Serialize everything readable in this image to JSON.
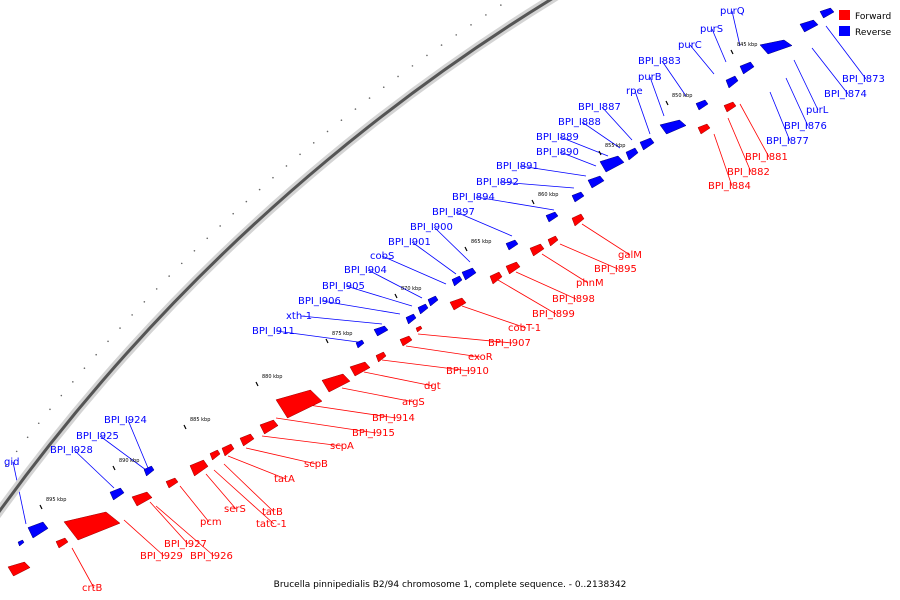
{
  "caption": "Brucella pinnipedialis B2/94 chromosome 1, complete sequence. - 0..2138342",
  "legend": {
    "forward": {
      "label": "Forward",
      "color": "#ff0000"
    },
    "reverse": {
      "label": "Reverse",
      "color": "#0000ff"
    }
  },
  "tick_labels": [
    "845 kbp",
    "850 kbp",
    "855 kbp",
    "860 kbp",
    "865 kbp",
    "870 kbp",
    "875 kbp",
    "880 kbp",
    "885 kbp",
    "890 kbp",
    "895 kbp"
  ],
  "reverse_genes": [
    "purQ",
    "purS",
    "purC",
    "BPI_I883",
    "purB",
    "rpe",
    "BPI_I887",
    "BPI_I888",
    "BPI_I889",
    "BPI_I890",
    "BPI_I891",
    "BPI_I892",
    "BPI_I894",
    "BPI_I897",
    "BPI_I900",
    "BPI_I901",
    "cobS",
    "BPI_I904",
    "BPI_I905",
    "BPI_I906",
    "xth-1",
    "BPI_I911",
    "BPI_I924",
    "BPI_I925",
    "BPI_I928",
    "gid",
    "BPI_I873",
    "BPI_I874",
    "purL",
    "BPI_I876",
    "BPI_I877"
  ],
  "forward_genes": [
    "BPI_I881",
    "BPI_I882",
    "BPI_I884",
    "galM",
    "BPI_I895",
    "phnM",
    "BPI_I898",
    "BPI_I899",
    "cobT-1",
    "BPI_I907",
    "exoR",
    "BPI_I910",
    "dgt",
    "argS",
    "BPI_I914",
    "BPI_I915",
    "scpA",
    "scpB",
    "tatA",
    "tatB",
    "tatC-1",
    "serS",
    "pcm",
    "BPI_I927",
    "BPI_I926",
    "BPI_I929",
    "crtB"
  ]
}
